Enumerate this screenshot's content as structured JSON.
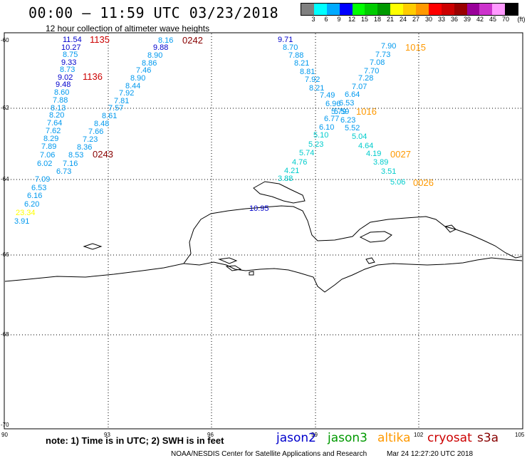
{
  "header": {
    "title": "00:00 – 11:59 UTC 03/23/2018",
    "subtitle": "12 hour collection of altimeter wave heights"
  },
  "legend": {
    "colors": [
      "#808080",
      "#00ffff",
      "#00aaff",
      "#0000ff",
      "#00ff00",
      "#00cc00",
      "#009900",
      "#ffff00",
      "#ffcc00",
      "#ff9900",
      "#ff0000",
      "#cc0000",
      "#990000",
      "#990099",
      "#cc33cc",
      "#ff99ff",
      "#000000"
    ],
    "ticks": [
      "3",
      "6",
      "9",
      "12",
      "15",
      "18",
      "21",
      "24",
      "27",
      "30",
      "33",
      "36",
      "39",
      "42",
      "45",
      "70",
      "(ft)"
    ]
  },
  "axes": {
    "x_ticks": [
      "90",
      "93",
      "96",
      "99",
      "102",
      "105"
    ],
    "y_ticks": [
      "-60",
      "-62",
      "-64",
      "-66",
      "-68",
      "-70"
    ]
  },
  "swh_labels": [
    {
      "t": "11.54",
      "c": "#0000cc"
    },
    {
      "t": "10.27",
      "c": "#0000cc"
    },
    {
      "t": "8.75",
      "c": "#0099ee"
    },
    {
      "t": "9.33",
      "c": "#0000cc"
    },
    {
      "t": "8.73",
      "c": "#0099ee"
    },
    {
      "t": "9.02",
      "c": "#0000cc"
    },
    {
      "t": "9.48",
      "c": "#0000cc"
    },
    {
      "t": "8.60",
      "c": "#0099ee"
    },
    {
      "t": "7.88",
      "c": "#0099ee"
    },
    {
      "t": "8.13",
      "c": "#0099ee"
    },
    {
      "t": "8.20",
      "c": "#0099ee"
    },
    {
      "t": "7.64",
      "c": "#0099ee"
    },
    {
      "t": "7.62",
      "c": "#0099ee"
    },
    {
      "t": "8.29",
      "c": "#0099ee"
    },
    {
      "t": "7.89",
      "c": "#0099ee"
    },
    {
      "t": "7.06",
      "c": "#0099ee"
    },
    {
      "t": "6.02",
      "c": "#0099ee"
    },
    {
      "t": "7.09",
      "c": "#0099ee"
    },
    {
      "t": "6.53",
      "c": "#0099ee"
    },
    {
      "t": "6.16",
      "c": "#0099ee"
    },
    {
      "t": "6.20",
      "c": "#0099ee"
    },
    {
      "t": "23.34",
      "c": "#ffff00"
    },
    {
      "t": "3.91",
      "c": "#0099ee"
    },
    {
      "t": "8.16",
      "c": "#0099ee"
    },
    {
      "t": "9.88",
      "c": "#0000cc"
    },
    {
      "t": "8.90",
      "c": "#0099ee"
    },
    {
      "t": "8.86",
      "c": "#0099ee"
    },
    {
      "t": "7.46",
      "c": "#0099ee"
    },
    {
      "t": "8.90",
      "c": "#0099ee"
    },
    {
      "t": "8.44",
      "c": "#0099ee"
    },
    {
      "t": "7.92",
      "c": "#0099ee"
    },
    {
      "t": "7.81",
      "c": "#0099ee"
    },
    {
      "t": "7.57",
      "c": "#0099ee"
    },
    {
      "t": "8.61",
      "c": "#0099ee"
    },
    {
      "t": "8.48",
      "c": "#0099ee"
    },
    {
      "t": "7.66",
      "c": "#0099ee"
    },
    {
      "t": "7.23",
      "c": "#0099ee"
    },
    {
      "t": "8.36",
      "c": "#0099ee"
    },
    {
      "t": "8.53",
      "c": "#0099ee"
    },
    {
      "t": "7.16",
      "c": "#0099ee"
    },
    {
      "t": "6.73",
      "c": "#0099ee"
    },
    {
      "t": "9.71",
      "c": "#0000cc"
    },
    {
      "t": "8.70",
      "c": "#0099ee"
    },
    {
      "t": "7.88",
      "c": "#0099ee"
    },
    {
      "t": "8.21",
      "c": "#0099ee"
    },
    {
      "t": "8.81",
      "c": "#0099ee"
    },
    {
      "t": "7.92",
      "c": "#0099ee"
    },
    {
      "t": "8.21",
      "c": "#0099ee"
    },
    {
      "t": "7.49",
      "c": "#0099ee"
    },
    {
      "t": "6.96",
      "c": "#0099ee"
    },
    {
      "t": "5.79",
      "c": "#0099ee"
    },
    {
      "t": "6.77",
      "c": "#0099ee"
    },
    {
      "t": "6.10",
      "c": "#0099ee"
    },
    {
      "t": "5.10",
      "c": "#00cccc"
    },
    {
      "t": "5.23",
      "c": "#00cccc"
    },
    {
      "t": "5.74",
      "c": "#00cccc"
    },
    {
      "t": "4.76",
      "c": "#00cccc"
    },
    {
      "t": "4.21",
      "c": "#00cccc"
    },
    {
      "t": "3.88",
      "c": "#00cccc"
    },
    {
      "t": "10.95",
      "c": "#0000cc"
    },
    {
      "t": "7.90",
      "c": "#0099ee"
    },
    {
      "t": "7.73",
      "c": "#0099ee"
    },
    {
      "t": "7.08",
      "c": "#0099ee"
    },
    {
      "t": "7.70",
      "c": "#0099ee"
    },
    {
      "t": "7.28",
      "c": "#0099ee"
    },
    {
      "t": "7.07",
      "c": "#0099ee"
    },
    {
      "t": "6.64",
      "c": "#0099ee"
    },
    {
      "t": "6.53",
      "c": "#0099ee"
    },
    {
      "t": "5.59",
      "c": "#0099ee"
    },
    {
      "t": "6.23",
      "c": "#0099ee"
    },
    {
      "t": "5.52",
      "c": "#0099ee"
    },
    {
      "t": "5.04",
      "c": "#00cccc"
    },
    {
      "t": "4.64",
      "c": "#00cccc"
    },
    {
      "t": "4.19",
      "c": "#00cccc"
    },
    {
      "t": "3.89",
      "c": "#00cccc"
    },
    {
      "t": "3.51",
      "c": "#00cccc"
    },
    {
      "t": "5.06",
      "c": "#00cccc"
    }
  ],
  "time_labels": [
    {
      "t": "1135",
      "c": "#cc0000"
    },
    {
      "t": "1136",
      "c": "#cc0000"
    },
    {
      "t": "0242",
      "c": "#880000"
    },
    {
      "t": "0243",
      "c": "#880000"
    },
    {
      "t": "1015",
      "c": "#ff9900"
    },
    {
      "t": "1016",
      "c": "#ff9900"
    },
    {
      "t": "0027",
      "c": "#ff9900"
    },
    {
      "t": "0026",
      "c": "#ff9900"
    }
  ],
  "note": "note:  1) Time is in UTC;  2) SWH is in feet",
  "satellites": [
    {
      "name": "jason2",
      "color": "#0000cc"
    },
    {
      "name": "jason3",
      "color": "#009900"
    },
    {
      "name": "altika",
      "color": "#ff9900"
    },
    {
      "name": "cryosat",
      "color": "#cc0000"
    },
    {
      "name": "s3a",
      "color": "#880000"
    }
  ],
  "credit": "NOAA/NESDIS Center for Satellite Applications and Research",
  "generated": "Mar 24 12:27:20 UTC 2018"
}
